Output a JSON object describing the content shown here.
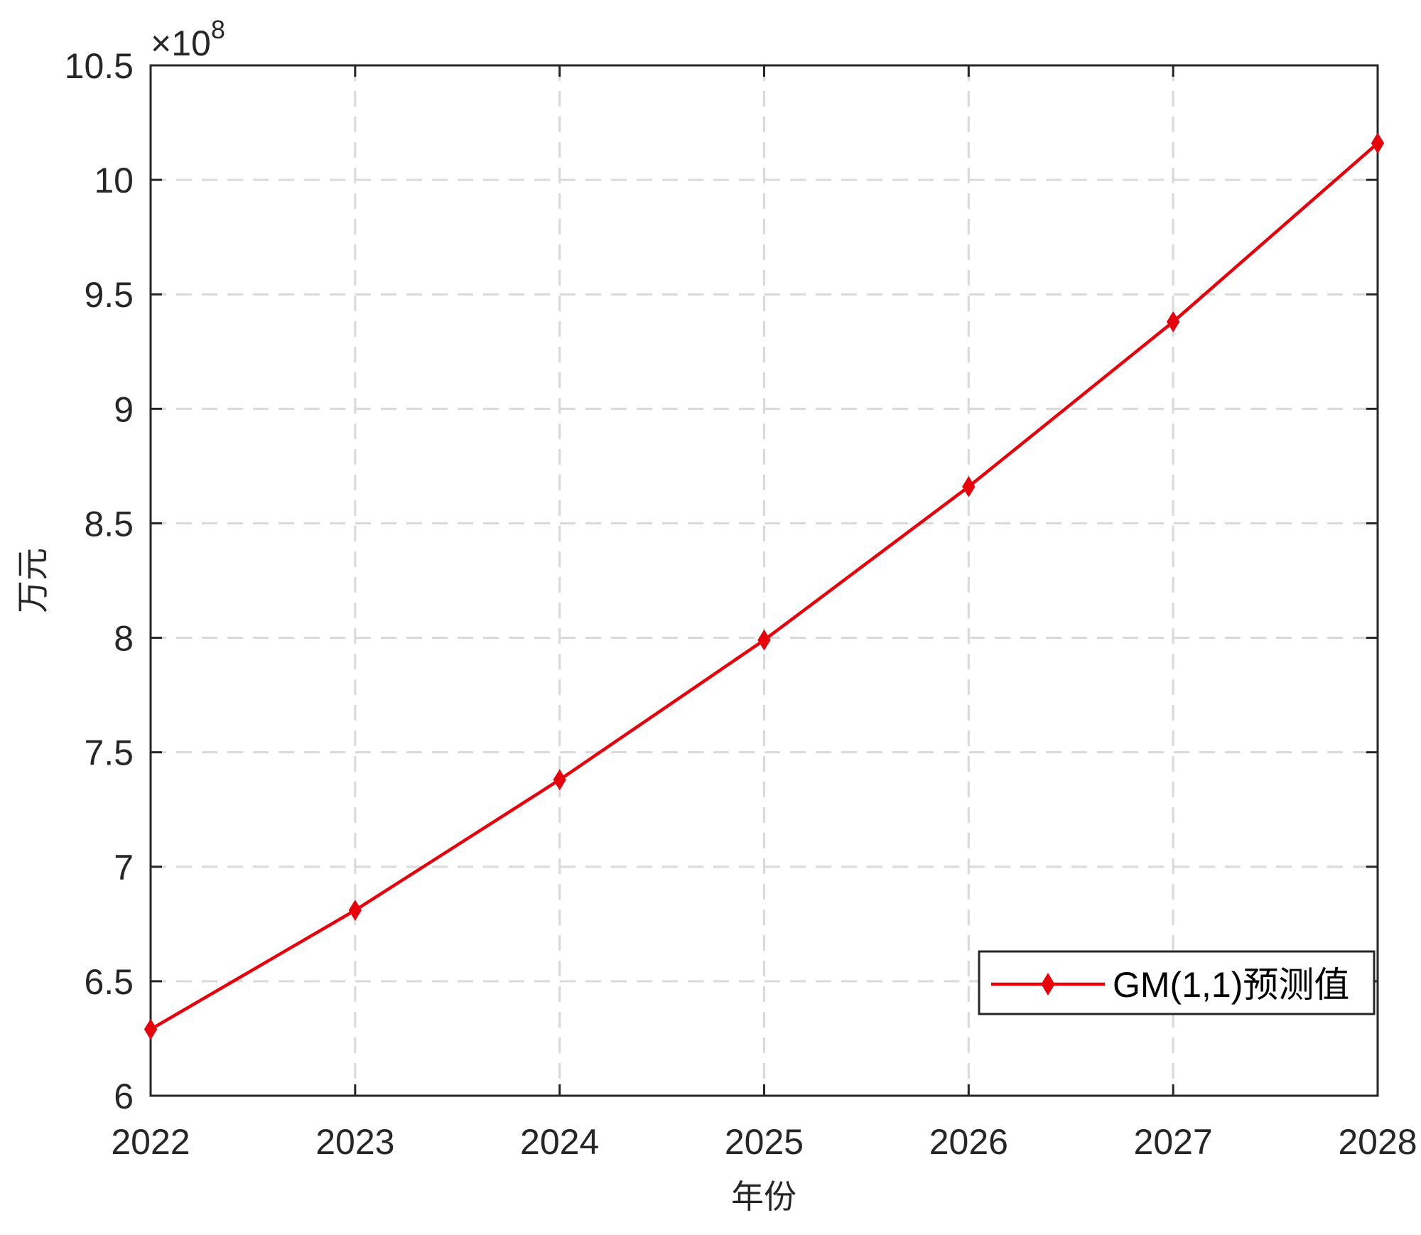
{
  "chart_data": {
    "type": "line",
    "xlabel": "年份",
    "ylabel": "万元",
    "x": [
      2022,
      2023,
      2024,
      2025,
      2026,
      2027,
      2028
    ],
    "x_tick_labels": [
      "2022",
      "2023",
      "2024",
      "2025",
      "2026",
      "2027",
      "2028"
    ],
    "xlim": [
      2022,
      2028
    ],
    "ylim": [
      6,
      10.5
    ],
    "y_ticks": [
      6,
      6.5,
      7,
      7.5,
      8,
      8.5,
      9,
      9.5,
      10,
      10.5
    ],
    "y_tick_labels": [
      "6",
      "6.5",
      "7",
      "7.5",
      "8",
      "8.5",
      "9",
      "9.5",
      "10",
      "10.5"
    ],
    "y_multiplier": {
      "times": "×10",
      "exponent": "8"
    },
    "grid": true,
    "grid_style": "dashed",
    "legend_position": "bottom-right",
    "series": [
      {
        "name": "GM(1,1)预测值",
        "color": "#e8000b",
        "marker": "diamond",
        "values": [
          6.29,
          6.81,
          7.38,
          7.99,
          8.66,
          9.38,
          10.16
        ]
      }
    ]
  }
}
